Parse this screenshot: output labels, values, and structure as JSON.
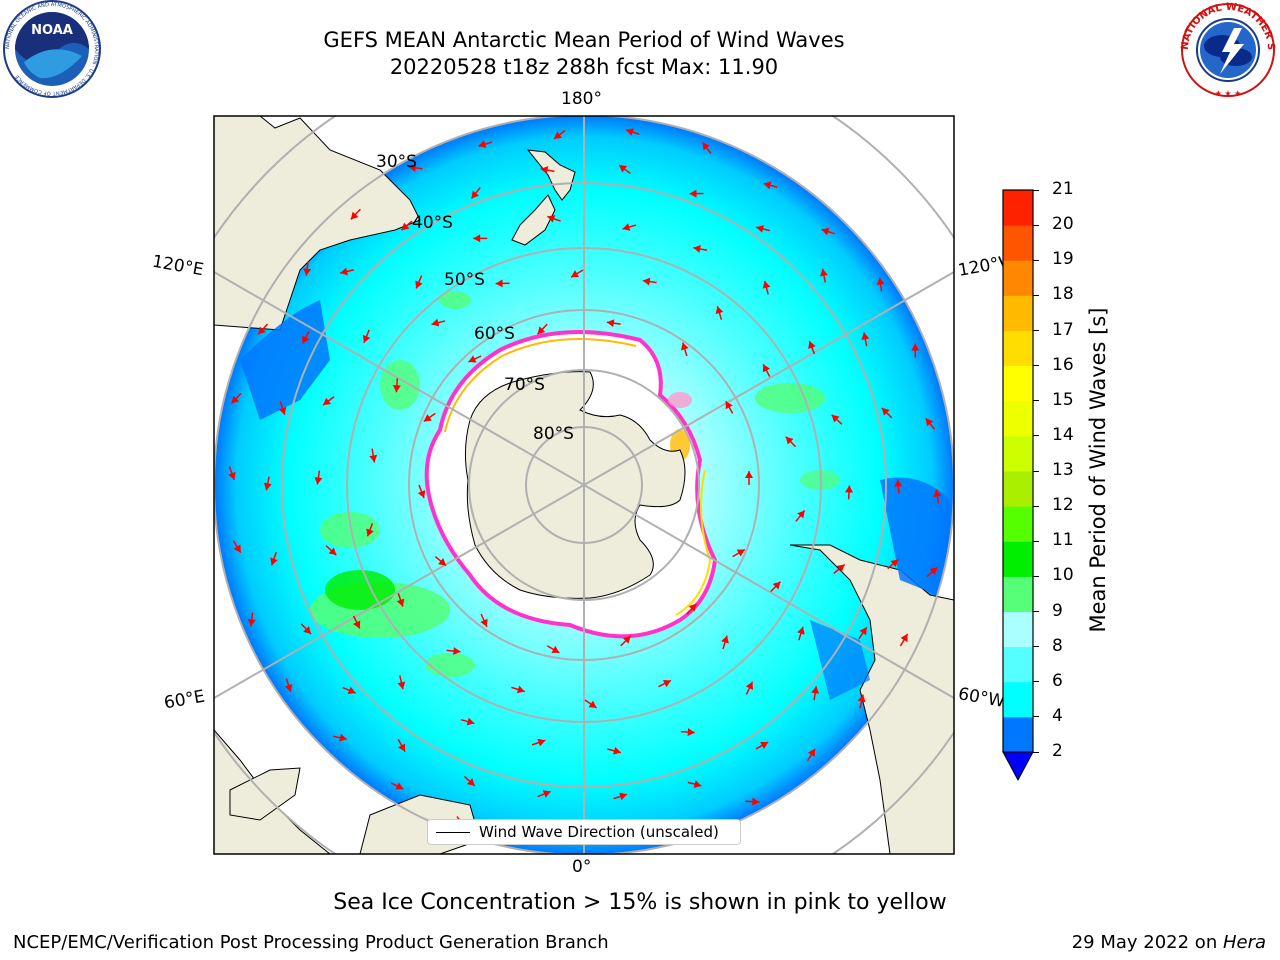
{
  "header": {
    "title_line1": "GEFS MEAN Antarctic Mean Period of Wind Waves",
    "title_line2": "20220528 t18z 288h fcst   Max: 11.90"
  },
  "logos": {
    "left": "noaa-logo",
    "left_text": "NOAA",
    "left_ring_text": "NATIONAL OCEANIC AND ATMOSPHERIC ADMINISTRATION · U.S. DEPARTMENT OF COMMERCE",
    "right": "national-weather-service-logo",
    "right_ring_text": "NATIONAL WEATHER SERVICE"
  },
  "map": {
    "projection": "south-polar-stereographic",
    "lon_labels": {
      "top": "180°",
      "bottom": "0°",
      "upper_left": "120°E",
      "upper_right": "120°W",
      "lower_left": "60°E",
      "lower_right": "60°W"
    },
    "lat_labels": [
      "30°S",
      "40°S",
      "50°S",
      "60°S",
      "70°S",
      "80°S"
    ],
    "legend_label": "Wind Wave Direction (unscaled)",
    "arrow_color": "#ff0000",
    "land_color": "#eeecdb",
    "sea_ice_color": "#ffffff",
    "ocean_base_color": "#00ffff"
  },
  "colorbar": {
    "label": "Mean Period of Wind Waves [s]",
    "ticks": [
      "2",
      "4",
      "6",
      "8",
      "9",
      "10",
      "11",
      "12",
      "13",
      "14",
      "15",
      "16",
      "17",
      "18",
      "19",
      "20",
      "21"
    ],
    "colors": [
      "#0000ff",
      "#0077ff",
      "#00ffff",
      "#55ffff",
      "#aaffff",
      "#55ff77",
      "#00ee00",
      "#55ff00",
      "#aaee00",
      "#ccff00",
      "#eeff00",
      "#ffff00",
      "#ffdd00",
      "#ffbb00",
      "#ff8800",
      "#ff5500",
      "#ff2200",
      "#ff0000"
    ]
  },
  "notes": {
    "ice": "Sea Ice Concentration > 15% is shown in pink to yellow"
  },
  "footer": {
    "left": "NCEP/EMC/Verification Post Processing Product Generation Branch",
    "right_date": "29 May 2022 on ",
    "right_machine": "Hera"
  }
}
